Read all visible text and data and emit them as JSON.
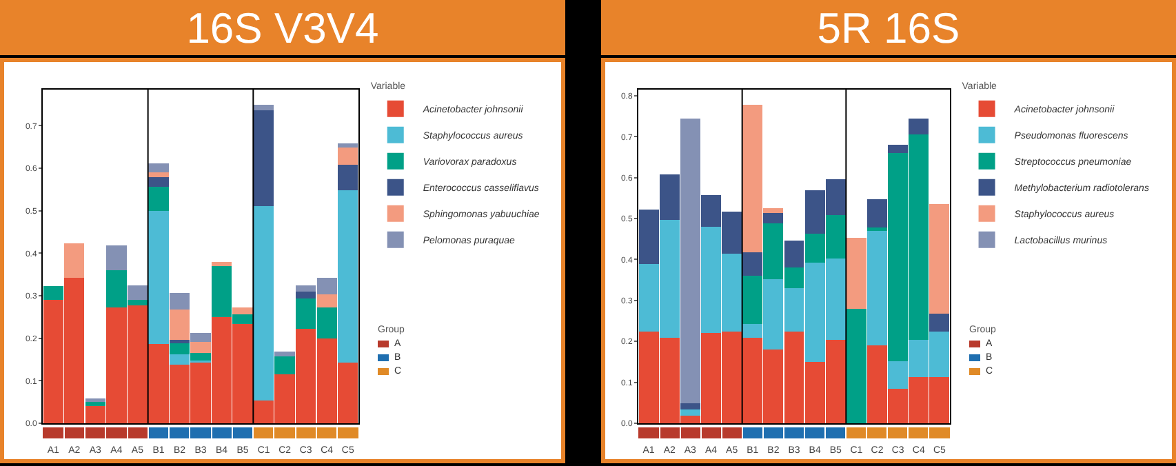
{
  "chart_data": [
    {
      "type": "bar",
      "title": "16S V3V4",
      "stacked": true,
      "legend": "right",
      "legend_title": "Variable",
      "annotations": [
        "Group",
        "A",
        "B",
        "C"
      ],
      "categories": [
        "A1",
        "A2",
        "A3",
        "A4",
        "A5",
        "B1",
        "B2",
        "B3",
        "B4",
        "B5",
        "C1",
        "C2",
        "C3",
        "C4",
        "C5"
      ],
      "ylim": [
        0,
        0.785
      ],
      "yticks": [
        {
          "value": 0,
          "label": "0.0"
        },
        0.1,
        0.2,
        0.3,
        0.4,
        0.5,
        0.6,
        0.7
      ],
      "series": [
        {
          "name": "Acinetobacter johnsonii",
          "color": "#e64b35",
          "values": [
            0.291,
            0.342,
            0.04,
            0.272,
            0.277,
            0.187,
            0.138,
            0.142,
            0.25,
            0.234,
            0.054,
            0.115,
            0.223,
            0.199,
            0.142
          ]
        },
        {
          "name": "Staphylococcus aureus",
          "color": "#4dbbd5",
          "values": [
            0,
            0,
            0,
            0,
            0,
            0.312,
            0.025,
            0.005,
            0,
            0,
            0.457,
            0,
            0,
            0,
            0.407
          ]
        },
        {
          "name": "Variovorax paradoxus",
          "color": "#00a087",
          "values": [
            0.031,
            0,
            0.01,
            0.088,
            0.014,
            0.057,
            0.025,
            0.019,
            0.119,
            0.022,
            0,
            0.042,
            0.07,
            0.073,
            0
          ]
        },
        {
          "name": "Enterococcus casseliflavus",
          "color": "#3c5488",
          "values": [
            0,
            0,
            0,
            0,
            0,
            0.023,
            0.008,
            0,
            0,
            0,
            0.226,
            0,
            0.016,
            0,
            0.06
          ]
        },
        {
          "name": "Sphingomonas yabuuchiae",
          "color": "#f39b7f",
          "values": [
            0,
            0.081,
            0,
            0,
            0,
            0.011,
            0.071,
            0.026,
            0.01,
            0.016,
            0,
            0,
            0,
            0.031,
            0.039
          ]
        },
        {
          "name": "Pelomonas puraquae",
          "color": "#8491b4",
          "values": [
            0,
            0,
            0.008,
            0.058,
            0.034,
            0.022,
            0.039,
            0.021,
            0,
            0,
            0.012,
            0.011,
            0.015,
            0.04,
            0.01
          ]
        }
      ]
    },
    {
      "type": "bar",
      "title": "5R 16S",
      "stacked": true,
      "legend": "right",
      "legend_title": "Variable",
      "annotations": [
        "Group",
        "A",
        "B",
        "C"
      ],
      "categories": [
        "A1",
        "A2",
        "A3",
        "A4",
        "A5",
        "B1",
        "B2",
        "B3",
        "B4",
        "B5",
        "C1",
        "C2",
        "C3",
        "C4",
        "C5"
      ],
      "ylim": [
        0,
        0.815
      ],
      "yticks": [
        {
          "value": 0,
          "label": "0.0"
        },
        0.1,
        0.2,
        0.3,
        0.4,
        0.5,
        0.6,
        0.7,
        0.8
      ],
      "series": [
        {
          "name": "Acinetobacter johnsonii",
          "color": "#e64b35",
          "values": [
            0.224,
            0.208,
            0.018,
            0.221,
            0.224,
            0.208,
            0.18,
            0.224,
            0.15,
            0.203,
            0,
            0.19,
            0.085,
            0.113,
            0.113
          ]
        },
        {
          "name": "Pseudomonas fluorescens",
          "color": "#4dbbd5",
          "values": [
            0.165,
            0.289,
            0.016,
            0.259,
            0.191,
            0.035,
            0.172,
            0.106,
            0.242,
            0.199,
            0,
            0.279,
            0.067,
            0.09,
            0.111
          ]
        },
        {
          "name": "Streptococcus pneumoniae",
          "color": "#00a087",
          "values": [
            0,
            0,
            0,
            0,
            0,
            0.118,
            0.136,
            0.05,
            0.071,
            0.106,
            0.279,
            0.009,
            0.508,
            0.503,
            0
          ]
        },
        {
          "name": "Methylobacterium radiotolerans",
          "color": "#3c5488",
          "values": [
            0.133,
            0.111,
            0.015,
            0.077,
            0.102,
            0.057,
            0.026,
            0.066,
            0.107,
            0.088,
            0,
            0.07,
            0.021,
            0.038,
            0.044
          ]
        },
        {
          "name": "Staphylococcus aureus",
          "color": "#f39b7f",
          "values": [
            0,
            0,
            0,
            0,
            0,
            0.36,
            0.012,
            0,
            0,
            0,
            0.174,
            0,
            0,
            0,
            0.267
          ]
        },
        {
          "name": "Lactobacillus murinus",
          "color": "#8491b4",
          "values": [
            0,
            0,
            0.696,
            0,
            0,
            0,
            0,
            0,
            0,
            0,
            0,
            0,
            0,
            0,
            0
          ]
        }
      ]
    }
  ]
}
